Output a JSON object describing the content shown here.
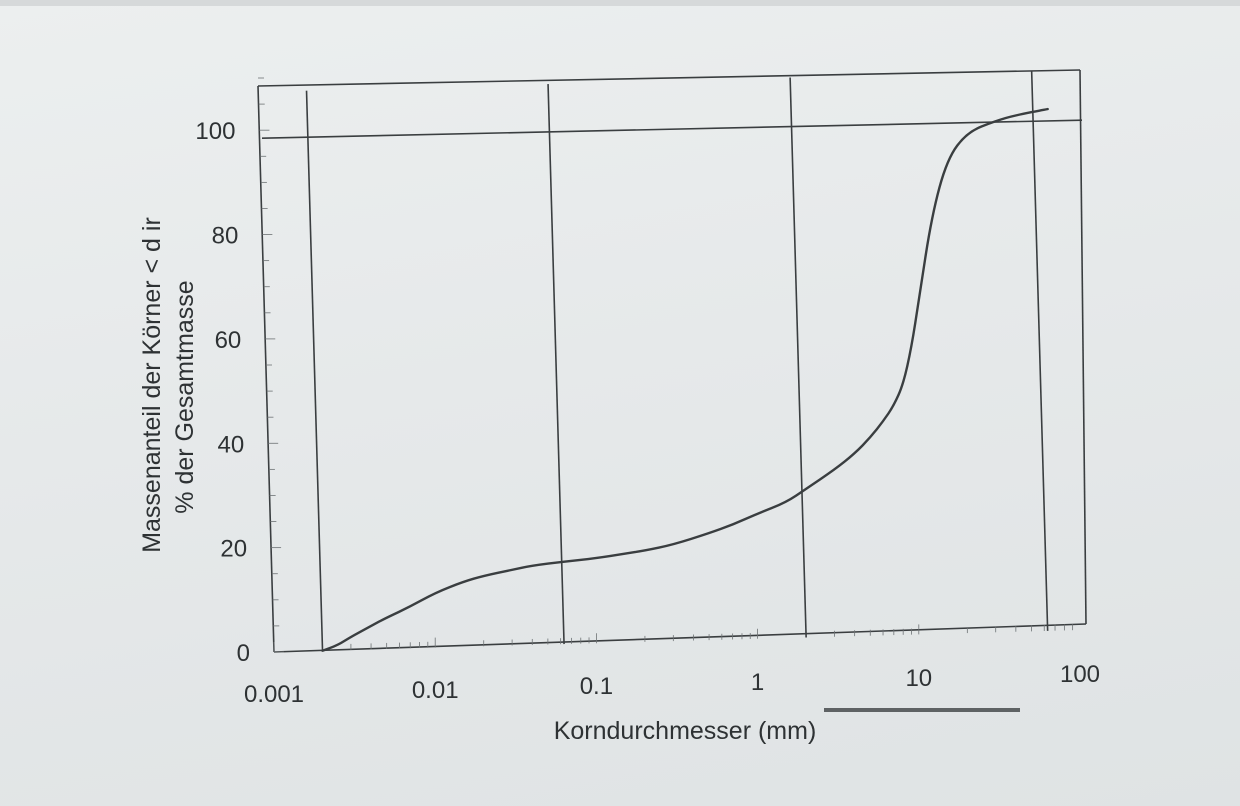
{
  "chart_data": {
    "type": "line",
    "xlabel": "Korndurchmesser (mm)",
    "ylabel_line1": "Massenanteil der Körner < d ir",
    "ylabel_line2": "% der Gesamtmasse",
    "x_scale": "log",
    "xlim": [
      0.001,
      100
    ],
    "ylim": [
      0,
      110
    ],
    "x_ticks": [
      {
        "value": 0.001,
        "label": "0.001"
      },
      {
        "value": 0.01,
        "label": "0.01"
      },
      {
        "value": 0.1,
        "label": "0.1"
      },
      {
        "value": 1,
        "label": "1"
      },
      {
        "value": 10,
        "label": "10"
      },
      {
        "value": 100,
        "label": "100"
      }
    ],
    "y_ticks": [
      {
        "value": 0,
        "label": "0"
      },
      {
        "value": 20,
        "label": "20"
      },
      {
        "value": 40,
        "label": "40"
      },
      {
        "value": 60,
        "label": "60"
      },
      {
        "value": 80,
        "label": "80"
      },
      {
        "value": 100,
        "label": "100"
      }
    ],
    "vertical_reference_lines": [
      0.002,
      0.063,
      2,
      63
    ],
    "horizontal_reference_lines": [
      100
    ],
    "grid": false,
    "series": [
      {
        "x": [
          0.002,
          0.0025,
          0.003,
          0.004,
          0.005,
          0.007,
          0.01,
          0.015,
          0.02,
          0.03,
          0.04,
          0.063,
          0.1,
          0.15,
          0.2,
          0.3,
          0.5,
          0.7,
          1,
          1.5,
          2,
          3,
          4,
          5,
          6,
          7,
          8,
          9,
          10,
          12,
          15,
          20,
          30,
          40,
          63
        ],
        "y": [
          0,
          1,
          2.5,
          4.5,
          6,
          8,
          10.5,
          12.5,
          13.5,
          14.5,
          15.2,
          15.8,
          16.3,
          17,
          17.5,
          18.5,
          20.5,
          22,
          24,
          26,
          28.5,
          32,
          35,
          38,
          41,
          44,
          48,
          55,
          64,
          80,
          91,
          96,
          98,
          99,
          100
        ]
      }
    ]
  }
}
